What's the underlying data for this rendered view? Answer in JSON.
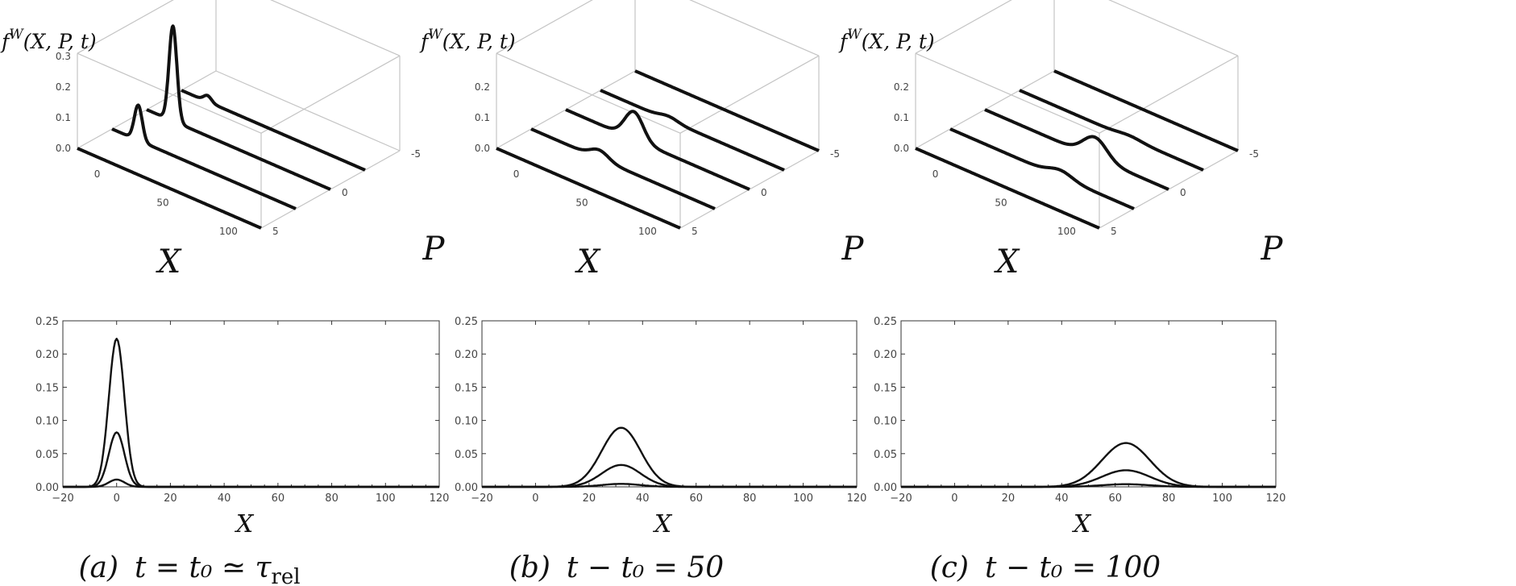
{
  "chart_data": [
    {
      "panel": "a",
      "type": "surface-slices",
      "caption": "(a)  t = t₀ ≃ τrel",
      "caption_parts": {
        "letter": "(a)",
        "expr": "t = t₀ ≃ τ",
        "sub": "rel"
      },
      "zlabel": "f^W(X,P,t)",
      "zlabel_parts": {
        "f": "f",
        "sup": "W",
        "args": "(X, P, t)"
      },
      "xlabel": "X",
      "plabel": "P",
      "z_ticks": [
        "0.0",
        "0.1",
        "0.2",
        "0.3"
      ],
      "x_ticks": [
        "0",
        "50",
        "100"
      ],
      "p_ticks": [
        "-5",
        "0",
        "5"
      ],
      "slices_3d": [
        {
          "p": 5,
          "mu": 0,
          "sigma": 3,
          "amp": 0.0
        },
        {
          "p": 2.5,
          "mu": 0,
          "sigma": 3,
          "amp": 0.115
        },
        {
          "p": 0,
          "mu": 0,
          "sigma": 3,
          "amp": 0.31
        },
        {
          "p": -2.5,
          "mu": 0,
          "sigma": 3,
          "amp": 0.02
        }
      ],
      "bottom": {
        "type": "line",
        "xlabel": "X",
        "xlim": [
          -20,
          120
        ],
        "ylim": [
          0,
          0.25
        ],
        "x_ticks": [
          "-20",
          "0",
          "20",
          "40",
          "60",
          "80",
          "100",
          "120"
        ],
        "y_ticks": [
          "0.00",
          "0.05",
          "0.10",
          "0.15",
          "0.20",
          "0.25"
        ],
        "series": [
          {
            "mu": 0,
            "sigma": 2.9,
            "amp": 0.223
          },
          {
            "mu": 0,
            "sigma": 2.9,
            "amp": 0.082
          },
          {
            "mu": 0,
            "sigma": 2.9,
            "amp": 0.011
          }
        ]
      }
    },
    {
      "panel": "b",
      "type": "surface-slices",
      "caption": "(b)  t − t₀ = 50",
      "caption_parts": {
        "letter": "(b)",
        "expr": "t − t₀ = 50",
        "sub": ""
      },
      "zlabel": "f^W(X,P,t)",
      "zlabel_parts": {
        "f": "f",
        "sup": "W",
        "args": "(X, P, t)"
      },
      "xlabel": "X",
      "plabel": "P",
      "z_ticks": [
        "0.0",
        "0.1",
        "0.2"
      ],
      "x_ticks": [
        "0",
        "50",
        "100"
      ],
      "p_ticks": [
        "-5",
        "0",
        "5"
      ],
      "slices_3d": [
        {
          "p": 5,
          "mu": 32,
          "sigma": 7,
          "amp": 0.0
        },
        {
          "p": 2.5,
          "mu": 32,
          "sigma": 7,
          "amp": 0.028
        },
        {
          "p": 0,
          "mu": 32,
          "sigma": 7,
          "amp": 0.09
        },
        {
          "p": -2.5,
          "mu": 32,
          "sigma": 7,
          "amp": 0.012
        },
        {
          "p": -5,
          "mu": 32,
          "sigma": 7,
          "amp": 0.0
        }
      ],
      "bottom": {
        "type": "line",
        "xlabel": "X",
        "xlim": [
          -20,
          120
        ],
        "ylim": [
          0,
          0.25
        ],
        "x_ticks": [
          "-20",
          "0",
          "20",
          "40",
          "60",
          "80",
          "100",
          "120"
        ],
        "y_ticks": [
          "0.00",
          "0.05",
          "0.10",
          "0.15",
          "0.20",
          "0.25"
        ],
        "series": [
          {
            "mu": 32,
            "sigma": 7.3,
            "amp": 0.089
          },
          {
            "mu": 32,
            "sigma": 7.3,
            "amp": 0.033
          },
          {
            "mu": 32,
            "sigma": 7.3,
            "amp": 0.0045
          }
        ]
      }
    },
    {
      "panel": "c",
      "type": "surface-slices",
      "caption": "(c)  t − t₀ = 100",
      "caption_parts": {
        "letter": "(c)",
        "expr": "t − t₀ = 100",
        "sub": ""
      },
      "zlabel": "f^W(X,P,t)",
      "zlabel_parts": {
        "f": "f",
        "sup": "W",
        "args": "(X, P, t)"
      },
      "xlabel": "X",
      "plabel": "P",
      "z_ticks": [
        "0.0",
        "0.1",
        "0.2"
      ],
      "x_ticks": [
        "0",
        "50",
        "100"
      ],
      "p_ticks": [
        "-5",
        "0",
        "5"
      ],
      "slices_3d": [
        {
          "p": 5,
          "mu": 64,
          "sigma": 9,
          "amp": 0.0
        },
        {
          "p": 2.5,
          "mu": 64,
          "sigma": 9,
          "amp": 0.022
        },
        {
          "p": 0,
          "mu": 64,
          "sigma": 9,
          "amp": 0.066
        },
        {
          "p": -2.5,
          "mu": 64,
          "sigma": 9,
          "amp": 0.008
        },
        {
          "p": -5,
          "mu": 64,
          "sigma": 9,
          "amp": 0.0
        }
      ],
      "bottom": {
        "type": "line",
        "xlabel": "X",
        "xlim": [
          -20,
          120
        ],
        "ylim": [
          0,
          0.25
        ],
        "x_ticks": [
          "-20",
          "0",
          "20",
          "40",
          "60",
          "80",
          "100",
          "120"
        ],
        "y_ticks": [
          "0.00",
          "0.05",
          "0.10",
          "0.15",
          "0.20",
          "0.25"
        ],
        "series": [
          {
            "mu": 64,
            "sigma": 9.0,
            "amp": 0.066
          },
          {
            "mu": 64,
            "sigma": 9.0,
            "amp": 0.025
          },
          {
            "mu": 64,
            "sigma": 9.0,
            "amp": 0.004
          }
        ]
      }
    }
  ]
}
